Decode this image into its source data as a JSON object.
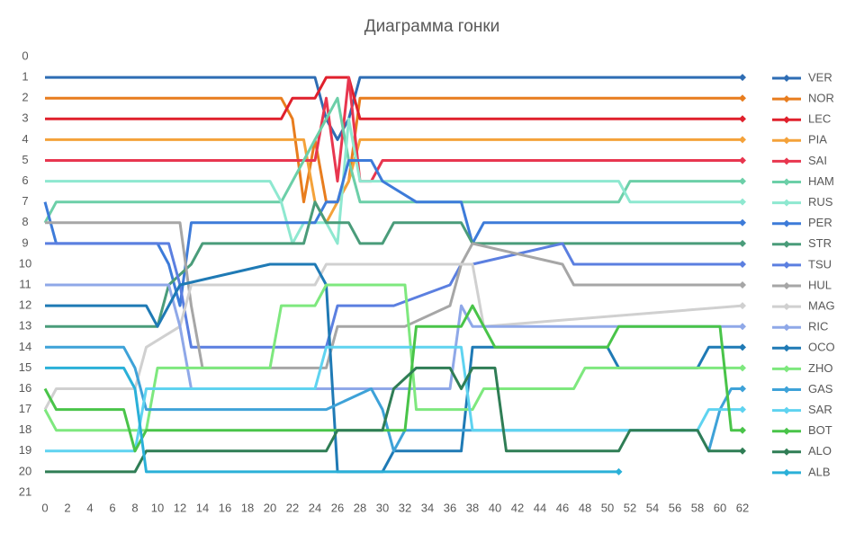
{
  "chart_data": {
    "type": "line",
    "title": "Диаграмма гонки",
    "xlim": [
      0,
      62
    ],
    "ylim": [
      21,
      0
    ],
    "xticks": [
      0,
      2,
      4,
      6,
      8,
      10,
      12,
      14,
      16,
      18,
      20,
      22,
      24,
      26,
      28,
      30,
      32,
      34,
      36,
      38,
      40,
      42,
      44,
      46,
      48,
      50,
      52,
      54,
      56,
      58,
      60,
      62
    ],
    "yticks": [
      0,
      1,
      2,
      3,
      4,
      5,
      6,
      7,
      8,
      9,
      10,
      11,
      12,
      13,
      14,
      15,
      16,
      17,
      18,
      19,
      20,
      21
    ],
    "series": [
      {
        "name": "VER",
        "color": "#2e6db4",
        "x": [
          0,
          24,
          25,
          26,
          27,
          28,
          62
        ],
        "values": [
          1,
          1,
          3,
          4,
          3,
          1,
          1
        ]
      },
      {
        "name": "NOR",
        "color": "#e87d1e",
        "x": [
          0,
          21,
          22,
          23,
          24,
          25,
          26,
          27,
          28,
          62
        ],
        "values": [
          2,
          2,
          3,
          7,
          4,
          7,
          7,
          6,
          2,
          2
        ]
      },
      {
        "name": "LEC",
        "color": "#e0202c",
        "x": [
          0,
          21,
          22,
          24,
          25,
          27,
          28,
          62
        ],
        "values": [
          3,
          3,
          2,
          2,
          1,
          1,
          3,
          3
        ]
      },
      {
        "name": "PIA",
        "color": "#f4a23a",
        "x": [
          0,
          23,
          24,
          25,
          26,
          27,
          28,
          62
        ],
        "values": [
          4,
          4,
          7,
          8,
          7,
          6,
          4,
          4
        ]
      },
      {
        "name": "SAI",
        "color": "#e8364f",
        "x": [
          0,
          24,
          25,
          26,
          27,
          28,
          29,
          30,
          62
        ],
        "values": [
          5,
          5,
          2,
          6,
          1,
          6,
          6,
          5,
          5
        ]
      },
      {
        "name": "HAM",
        "color": "#6ccfa8",
        "x": [
          0,
          1,
          21,
          22,
          23,
          24,
          25,
          26,
          27,
          28,
          51,
          52,
          62
        ],
        "values": [
          8,
          7,
          7,
          6,
          5,
          4,
          3,
          2,
          5,
          7,
          7,
          6,
          6
        ]
      },
      {
        "name": "RUS",
        "color": "#8ee8d0",
        "x": [
          0,
          20,
          21,
          22,
          23,
          24,
          25,
          26,
          27,
          28,
          51,
          52,
          62
        ],
        "values": [
          6,
          6,
          7,
          9,
          8,
          8,
          8,
          9,
          3,
          6,
          6,
          7,
          7
        ]
      },
      {
        "name": "PER",
        "color": "#3d7bd9",
        "x": [
          0,
          1,
          10,
          11,
          12,
          13,
          24,
          25,
          26,
          27,
          29,
          30,
          33,
          37,
          38,
          39,
          62
        ],
        "values": [
          7,
          9,
          9,
          10,
          12,
          8,
          8,
          7,
          7,
          5,
          5,
          6,
          7,
          7,
          9,
          8,
          8
        ]
      },
      {
        "name": "STR",
        "color": "#4a9c7a",
        "x": [
          0,
          9,
          10,
          11,
          13,
          14,
          23,
          24,
          25,
          27,
          28,
          30,
          31,
          37,
          38,
          62
        ],
        "values": [
          13,
          13,
          13,
          11,
          10,
          9,
          9,
          7,
          8,
          8,
          9,
          9,
          8,
          8,
          9,
          9
        ]
      },
      {
        "name": "TSU",
        "color": "#5b7fe0",
        "x": [
          0,
          1,
          11,
          12,
          13,
          14,
          25,
          26,
          30,
          31,
          36,
          37,
          38,
          46,
          47,
          62
        ],
        "values": [
          9,
          9,
          9,
          11,
          14,
          14,
          14,
          12,
          12,
          12,
          11,
          10,
          10,
          9,
          10,
          10
        ]
      },
      {
        "name": "HUL",
        "color": "#a6a6a6",
        "x": [
          0,
          1,
          12,
          13,
          14,
          25,
          26,
          32,
          36,
          37,
          38,
          46,
          47,
          62
        ],
        "values": [
          8,
          8,
          8,
          12,
          15,
          15,
          13,
          13,
          12,
          10,
          9,
          10,
          11,
          11
        ]
      },
      {
        "name": "MAG",
        "color": "#d0d0d0",
        "x": [
          0,
          1,
          8,
          9,
          12,
          13,
          24,
          25,
          38,
          39,
          62
        ],
        "values": [
          17,
          16,
          16,
          14,
          13,
          11,
          11,
          10,
          10,
          13,
          12
        ]
      },
      {
        "name": "RIC",
        "color": "#8fa8e8",
        "x": [
          0,
          1,
          10,
          11,
          12,
          13,
          36,
          37,
          38,
          62
        ],
        "values": [
          11,
          11,
          11,
          11,
          13,
          16,
          16,
          12,
          13,
          13
        ]
      },
      {
        "name": "OCO",
        "color": "#1f7ab5",
        "x": [
          0,
          9,
          10,
          11,
          12,
          20,
          21,
          24,
          25,
          26,
          30,
          31,
          37,
          38,
          50,
          51,
          58,
          59,
          62
        ],
        "values": [
          12,
          12,
          13,
          12,
          11,
          10,
          10,
          10,
          11,
          20,
          20,
          19,
          19,
          14,
          14,
          15,
          15,
          14,
          14
        ]
      },
      {
        "name": "ZHO",
        "color": "#7ee87e",
        "x": [
          0,
          1,
          9,
          10,
          20,
          21,
          24,
          25,
          32,
          33,
          38,
          39,
          47,
          48,
          62
        ],
        "values": [
          17,
          18,
          18,
          15,
          15,
          12,
          12,
          11,
          11,
          17,
          17,
          16,
          16,
          15,
          15
        ]
      },
      {
        "name": "GAS",
        "color": "#3ea2d8",
        "x": [
          0,
          7,
          8,
          9,
          25,
          29,
          30,
          31,
          32,
          58,
          59,
          60,
          61,
          62
        ],
        "values": [
          14,
          14,
          15,
          17,
          17,
          16,
          17,
          19,
          18,
          18,
          19,
          17,
          16,
          16
        ]
      },
      {
        "name": "SAR",
        "color": "#5fd3f0",
        "x": [
          0,
          7,
          8,
          9,
          10,
          24,
          25,
          37,
          38,
          58,
          59,
          62
        ],
        "values": [
          19,
          19,
          19,
          16,
          16,
          16,
          14,
          14,
          18,
          18,
          17,
          17
        ]
      },
      {
        "name": "BOT",
        "color": "#49c449",
        "x": [
          0,
          1,
          7,
          8,
          9,
          32,
          33,
          37,
          38,
          40,
          50,
          51,
          60,
          61,
          62
        ],
        "values": [
          16,
          17,
          17,
          19,
          18,
          18,
          13,
          13,
          12,
          14,
          14,
          13,
          13,
          18,
          18
        ]
      },
      {
        "name": "ALO",
        "color": "#2f7d55",
        "x": [
          0,
          7,
          8,
          9,
          25,
          26,
          30,
          31,
          33,
          36,
          37,
          38,
          40,
          41,
          51,
          52,
          58,
          59,
          62
        ],
        "values": [
          20,
          20,
          20,
          19,
          19,
          18,
          18,
          16,
          15,
          15,
          16,
          15,
          15,
          19,
          19,
          18,
          18,
          19,
          19
        ]
      },
      {
        "name": "ALB",
        "color": "#2ab0d8",
        "x": [
          0,
          7,
          8,
          9,
          51
        ],
        "values": [
          15,
          15,
          16,
          20,
          20
        ]
      }
    ]
  }
}
